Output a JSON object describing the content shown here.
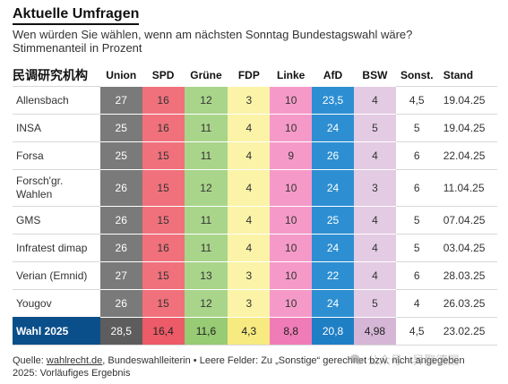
{
  "header": {
    "title": "Aktuelle Umfragen",
    "subtitle_line1": "Wen würden Sie wählen, wenn am nächsten Sonntag Bundestagswahl wäre?",
    "subtitle_line2": "Stimmenanteil in Prozent"
  },
  "table": {
    "columns": {
      "institute": "民调研究机构",
      "union": "Union",
      "spd": "SPD",
      "gruene": "Grüne",
      "fdp": "FDP",
      "linke": "Linke",
      "afd": "AfD",
      "bsw": "BSW",
      "sonst": "Sonst.",
      "stand": "Stand"
    },
    "rows": [
      {
        "institute": "Allensbach",
        "union": "27",
        "spd": "16",
        "gruene": "12",
        "fdp": "3",
        "linke": "10",
        "afd": "23,5",
        "bsw": "4",
        "sonst": "4,5",
        "stand": "19.04.25"
      },
      {
        "institute": "INSA",
        "union": "25",
        "spd": "16",
        "gruene": "11",
        "fdp": "4",
        "linke": "10",
        "afd": "24",
        "bsw": "5",
        "sonst": "5",
        "stand": "19.04.25"
      },
      {
        "institute": "Forsa",
        "union": "25",
        "spd": "15",
        "gruene": "11",
        "fdp": "4",
        "linke": "9",
        "afd": "26",
        "bsw": "4",
        "sonst": "6",
        "stand": "22.04.25"
      },
      {
        "institute": "Forsch'gr. Wahlen",
        "union": "26",
        "spd": "15",
        "gruene": "12",
        "fdp": "4",
        "linke": "10",
        "afd": "24",
        "bsw": "3",
        "sonst": "6",
        "stand": "11.04.25"
      },
      {
        "institute": "GMS",
        "union": "26",
        "spd": "15",
        "gruene": "11",
        "fdp": "4",
        "linke": "10",
        "afd": "25",
        "bsw": "4",
        "sonst": "5",
        "stand": "07.04.25"
      },
      {
        "institute": "Infratest dimap",
        "union": "26",
        "spd": "16",
        "gruene": "11",
        "fdp": "4",
        "linke": "10",
        "afd": "24",
        "bsw": "4",
        "sonst": "5",
        "stand": "03.04.25"
      },
      {
        "institute": "Verian (Emnid)",
        "union": "27",
        "spd": "15",
        "gruene": "13",
        "fdp": "3",
        "linke": "10",
        "afd": "22",
        "bsw": "4",
        "sonst": "6",
        "stand": "28.03.25"
      },
      {
        "institute": "Yougov",
        "union": "26",
        "spd": "15",
        "gruene": "12",
        "fdp": "3",
        "linke": "10",
        "afd": "24",
        "bsw": "5",
        "sonst": "4",
        "stand": "26.03.25"
      }
    ],
    "result": {
      "institute": "Wahl 2025",
      "union": "28,5",
      "spd": "16,4",
      "gruene": "11,6",
      "fdp": "4,3",
      "linke": "8,8",
      "afd": "20,8",
      "bsw": "4,98",
      "sonst": "4,5",
      "stand": "23.02.25"
    }
  },
  "footer": {
    "source_prefix": "Quelle: ",
    "source_link": "wahlrecht.de",
    "source_rest": ", Bundeswahlleiterin • Leere Felder: Zu „Sonstige“ gerechnet bzw. nicht angegeben",
    "line2": "2025: Vorläufiges Ergebnis"
  },
  "watermark": {
    "text": "公众号 · 异聚德国",
    "icon": "wechat-icon"
  },
  "colors": {
    "union": "#7a7a7a",
    "spd": "#f0717c",
    "gruene": "#a8d58a",
    "fdp": "#fbf3a7",
    "linke": "#f59ac8",
    "afd": "#2d8fd2",
    "bsw": "#e3cbe3",
    "result_bg": "#0b4f8a"
  }
}
